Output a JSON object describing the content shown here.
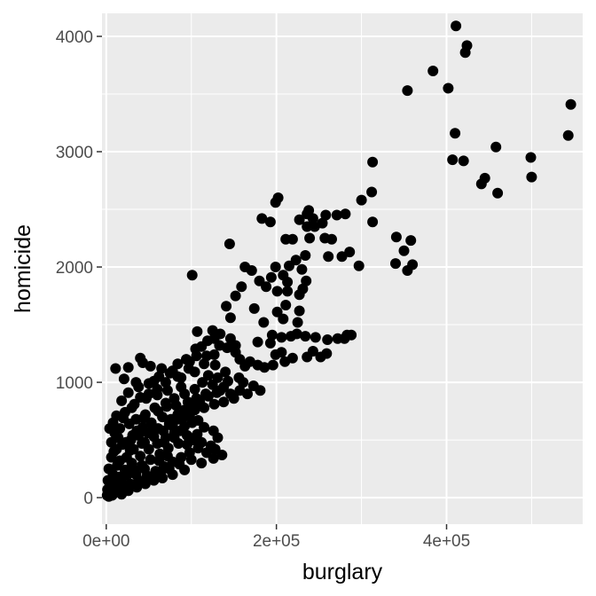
{
  "chart_data": {
    "type": "scatter",
    "title": "",
    "xlabel": "burglary",
    "ylabel": "homicide",
    "xlim": [
      -5000,
      560000
    ],
    "ylim": [
      -230,
      4200
    ],
    "grid": true,
    "legend": "none",
    "x_ticks": [
      {
        "value": 0,
        "label": "0e+00"
      },
      {
        "value": 200000,
        "label": "2e+05"
      },
      {
        "value": 400000,
        "label": "4e+05"
      }
    ],
    "x_minor_ticks": [
      100000,
      300000,
      500000
    ],
    "y_ticks": [
      {
        "value": 0,
        "label": "0"
      },
      {
        "value": 1000,
        "label": "1000"
      },
      {
        "value": 2000,
        "label": "2000"
      },
      {
        "value": 3000,
        "label": "3000"
      },
      {
        "value": 4000,
        "label": "4000"
      }
    ],
    "y_minor_ticks": [
      500,
      1500,
      2500,
      3500
    ],
    "colors": {
      "panel": "#ebebeb",
      "grid": "#ffffff",
      "point": "#000000"
    },
    "points": [
      [
        411000,
        4090
      ],
      [
        424000,
        3920
      ],
      [
        422000,
        3860
      ],
      [
        384000,
        3700
      ],
      [
        402000,
        3550
      ],
      [
        354000,
        3530
      ],
      [
        546000,
        3410
      ],
      [
        410000,
        3160
      ],
      [
        543000,
        3140
      ],
      [
        458000,
        3040
      ],
      [
        499000,
        2950
      ],
      [
        407000,
        2930
      ],
      [
        420000,
        2920
      ],
      [
        445000,
        2770
      ],
      [
        441000,
        2720
      ],
      [
        500000,
        2780
      ],
      [
        460000,
        2640
      ],
      [
        313000,
        2910
      ],
      [
        312000,
        2650
      ],
      [
        300000,
        2580
      ],
      [
        313000,
        2390
      ],
      [
        202000,
        2600
      ],
      [
        199000,
        2560
      ],
      [
        238000,
        2490
      ],
      [
        236000,
        2460
      ],
      [
        227000,
        2410
      ],
      [
        243000,
        2420
      ],
      [
        258000,
        2450
      ],
      [
        271000,
        2450
      ],
      [
        281000,
        2460
      ],
      [
        254000,
        2380
      ],
      [
        236000,
        2350
      ],
      [
        245000,
        2350
      ],
      [
        211000,
        2240
      ],
      [
        219000,
        2240
      ],
      [
        239000,
        2250
      ],
      [
        257000,
        2250
      ],
      [
        265000,
        2240
      ],
      [
        183000,
        2420
      ],
      [
        193000,
        2390
      ],
      [
        145000,
        2200
      ],
      [
        341000,
        2260
      ],
      [
        358000,
        2230
      ],
      [
        350000,
        2140
      ],
      [
        340000,
        2030
      ],
      [
        354000,
        1970
      ],
      [
        360000,
        2020
      ],
      [
        286000,
        2130
      ],
      [
        277000,
        2090
      ],
      [
        261000,
        2090
      ],
      [
        297000,
        2010
      ],
      [
        234000,
        2100
      ],
      [
        223000,
        2060
      ],
      [
        230000,
        1980
      ],
      [
        215000,
        2010
      ],
      [
        199000,
        2000
      ],
      [
        208000,
        1930
      ],
      [
        171000,
        1970
      ],
      [
        163000,
        2000
      ],
      [
        194000,
        1910
      ],
      [
        235000,
        1880
      ],
      [
        213000,
        1870
      ],
      [
        231000,
        1810
      ],
      [
        213000,
        1790
      ],
      [
        227000,
        1760
      ],
      [
        201000,
        1790
      ],
      [
        180000,
        1880
      ],
      [
        188000,
        1830
      ],
      [
        159000,
        1830
      ],
      [
        152000,
        1750
      ],
      [
        141000,
        1660
      ],
      [
        146000,
        1560
      ],
      [
        101000,
        1930
      ],
      [
        211000,
        1670
      ],
      [
        227000,
        1620
      ],
      [
        201000,
        1610
      ],
      [
        174000,
        1640
      ],
      [
        208000,
        1550
      ],
      [
        225000,
        1520
      ],
      [
        185000,
        1520
      ],
      [
        195000,
        1410
      ],
      [
        206000,
        1390
      ],
      [
        217000,
        1400
      ],
      [
        224000,
        1420
      ],
      [
        234000,
        1400
      ],
      [
        246000,
        1390
      ],
      [
        260000,
        1370
      ],
      [
        272000,
        1380
      ],
      [
        283000,
        1410
      ],
      [
        280000,
        1380
      ],
      [
        288000,
        1410
      ],
      [
        178000,
        1350
      ],
      [
        193000,
        1340
      ],
      [
        243000,
        1270
      ],
      [
        252000,
        1220
      ],
      [
        259000,
        1250
      ],
      [
        236000,
        1220
      ],
      [
        219000,
        1210
      ],
      [
        206000,
        1260
      ],
      [
        199000,
        1240
      ],
      [
        210000,
        1180
      ],
      [
        196000,
        1150
      ],
      [
        169000,
        1180
      ],
      [
        178000,
        1150
      ],
      [
        186000,
        1130
      ],
      [
        163000,
        1140
      ],
      [
        157000,
        1200
      ],
      [
        152000,
        1260
      ],
      [
        142000,
        1300
      ],
      [
        133000,
        1320
      ],
      [
        127000,
        1380
      ],
      [
        119000,
        1360
      ],
      [
        112000,
        1310
      ],
      [
        105000,
        1290
      ],
      [
        107000,
        1440
      ],
      [
        125000,
        1450
      ],
      [
        134000,
        1420
      ],
      [
        146000,
        1380
      ],
      [
        152000,
        1320
      ],
      [
        127000,
        1240
      ],
      [
        118000,
        1230
      ],
      [
        106000,
        1230
      ],
      [
        94000,
        1200
      ],
      [
        84000,
        1160
      ],
      [
        78000,
        1100
      ],
      [
        65000,
        1120
      ],
      [
        52000,
        1140
      ],
      [
        43000,
        1170
      ],
      [
        40000,
        1210
      ],
      [
        26000,
        1130
      ],
      [
        11000,
        1120
      ],
      [
        21000,
        1030
      ],
      [
        35000,
        1000
      ],
      [
        56000,
        1010
      ],
      [
        70000,
        1000
      ],
      [
        84000,
        1050
      ],
      [
        97000,
        1120
      ],
      [
        104000,
        1090
      ],
      [
        120000,
        1060
      ],
      [
        131000,
        1040
      ],
      [
        143000,
        1010
      ],
      [
        161000,
        1000
      ],
      [
        173000,
        970
      ],
      [
        181000,
        930
      ],
      [
        166000,
        900
      ],
      [
        157000,
        930
      ],
      [
        150000,
        860
      ],
      [
        138000,
        830
      ],
      [
        127000,
        810
      ],
      [
        115000,
        780
      ],
      [
        104000,
        760
      ],
      [
        98000,
        710
      ],
      [
        84000,
        680
      ],
      [
        74000,
        640
      ],
      [
        61000,
        600
      ],
      [
        49000,
        560
      ],
      [
        38000,
        540
      ],
      [
        29000,
        500
      ],
      [
        19000,
        460
      ],
      [
        12000,
        420
      ],
      [
        6000,
        350
      ],
      [
        3000,
        250
      ],
      [
        2000,
        150
      ],
      [
        1500,
        70
      ],
      [
        1000,
        20
      ],
      [
        8000,
        120
      ],
      [
        15000,
        180
      ],
      [
        22000,
        240
      ],
      [
        30000,
        300
      ],
      [
        40000,
        360
      ],
      [
        50000,
        420
      ],
      [
        60000,
        470
      ],
      [
        70000,
        520
      ],
      [
        80000,
        560
      ],
      [
        92000,
        620
      ],
      [
        101000,
        650
      ],
      [
        108000,
        670
      ],
      [
        92000,
        760
      ],
      [
        82000,
        800
      ],
      [
        70000,
        820
      ],
      [
        57000,
        780
      ],
      [
        46000,
        720
      ],
      [
        35000,
        680
      ],
      [
        27000,
        640
      ],
      [
        16000,
        600
      ],
      [
        10000,
        560
      ],
      [
        22000,
        740
      ],
      [
        33000,
        810
      ],
      [
        47000,
        860
      ],
      [
        60000,
        890
      ],
      [
        72000,
        930
      ],
      [
        88000,
        960
      ],
      [
        66000,
        700
      ],
      [
        53000,
        650
      ],
      [
        43000,
        610
      ],
      [
        31000,
        540
      ],
      [
        23000,
        480
      ],
      [
        45000,
        480
      ],
      [
        56000,
        530
      ],
      [
        67000,
        580
      ],
      [
        78000,
        620
      ],
      [
        87000,
        580
      ],
      [
        95000,
        540
      ],
      [
        102000,
        500
      ],
      [
        112000,
        480
      ],
      [
        123000,
        450
      ],
      [
        85000,
        470
      ],
      [
        73000,
        430
      ],
      [
        63000,
        380
      ],
      [
        52000,
        330
      ],
      [
        42000,
        280
      ],
      [
        33000,
        240
      ],
      [
        25000,
        200
      ],
      [
        18000,
        140
      ],
      [
        14000,
        90
      ],
      [
        9000,
        60
      ],
      [
        5000,
        30
      ],
      [
        28000,
        120
      ],
      [
        38000,
        150
      ],
      [
        48000,
        190
      ],
      [
        58000,
        230
      ],
      [
        68000,
        270
      ],
      [
        78000,
        310
      ],
      [
        88000,
        350
      ],
      [
        98000,
        390
      ],
      [
        108000,
        430
      ],
      [
        72000,
        360
      ],
      [
        62000,
        320
      ],
      [
        45000,
        250
      ],
      [
        35000,
        200
      ],
      [
        20000,
        100
      ],
      [
        12000,
        50
      ],
      [
        7000,
        20
      ],
      [
        3000,
        10
      ],
      [
        18000,
        30
      ],
      [
        26000,
        60
      ],
      [
        36000,
        90
      ],
      [
        46000,
        120
      ],
      [
        56000,
        150
      ],
      [
        66000,
        170
      ],
      [
        78000,
        200
      ],
      [
        92000,
        240
      ],
      [
        112000,
        300
      ],
      [
        126000,
        340
      ],
      [
        136000,
        370
      ],
      [
        24000,
        350
      ],
      [
        13000,
        280
      ],
      [
        8000,
        200
      ],
      [
        4000,
        100
      ],
      [
        32000,
        420
      ],
      [
        42000,
        470
      ],
      [
        6000,
        480
      ],
      [
        9000,
        400
      ],
      [
        14000,
        520
      ],
      [
        4000,
        600
      ],
      [
        8000,
        650
      ],
      [
        12000,
        710
      ],
      [
        18000,
        840
      ],
      [
        26000,
        910
      ],
      [
        38000,
        960
      ],
      [
        50000,
        990
      ],
      [
        62000,
        1050
      ],
      [
        75000,
        1080
      ],
      [
        88000,
        1040
      ],
      [
        113000,
        1000
      ],
      [
        125000,
        980
      ],
      [
        134000,
        930
      ],
      [
        146000,
        900
      ],
      [
        117000,
        900
      ],
      [
        106000,
        860
      ],
      [
        96000,
        830
      ],
      [
        84000,
        720
      ],
      [
        115000,
        610
      ],
      [
        126000,
        580
      ],
      [
        131000,
        520
      ],
      [
        107000,
        550
      ],
      [
        95000,
        460
      ],
      [
        118000,
        390
      ],
      [
        128000,
        420
      ],
      [
        100000,
        330
      ],
      [
        86000,
        290
      ],
      [
        74000,
        250
      ],
      [
        64000,
        210
      ],
      [
        52000,
        180
      ],
      [
        40000,
        140
      ],
      [
        30000,
        100
      ],
      [
        20000,
        70
      ],
      [
        140000,
        1090
      ],
      [
        156000,
        1040
      ],
      [
        128000,
        1150
      ],
      [
        115000,
        1160
      ],
      [
        98000,
        1180
      ],
      [
        60000,
        940
      ],
      [
        50000,
        900
      ],
      [
        40000,
        870
      ],
      [
        30000,
        780
      ],
      [
        20000,
        690
      ],
      [
        61000,
        750
      ],
      [
        71000,
        790
      ],
      [
        80000,
        860
      ],
      [
        92000,
        900
      ],
      [
        104000,
        940
      ],
      [
        44000,
        690
      ],
      [
        36000,
        580
      ],
      [
        16000,
        320
      ],
      [
        28000,
        410
      ],
      [
        55000,
        610
      ],
      [
        76000,
        680
      ],
      [
        96000,
        760
      ],
      [
        68000,
        480
      ],
      [
        80000,
        520
      ],
      [
        90000,
        690
      ],
      [
        100000,
        800
      ],
      [
        110000,
        830
      ],
      [
        120000,
        880
      ],
      [
        130000,
        910
      ],
      [
        138000,
        960
      ]
    ]
  }
}
